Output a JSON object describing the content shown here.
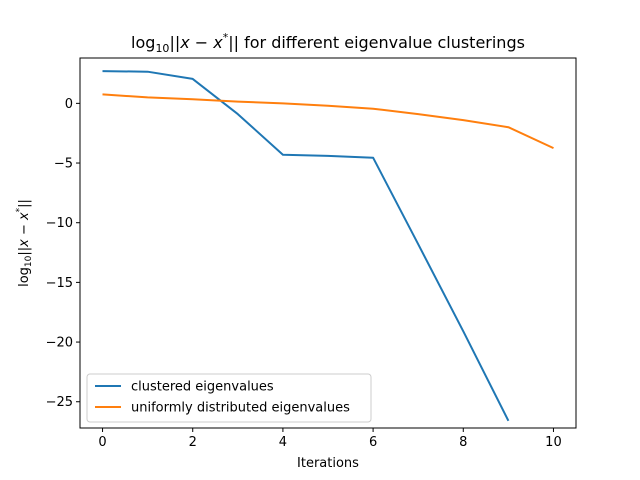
{
  "chart_data": {
    "type": "line",
    "title": {
      "prefix": "log",
      "sub": "10",
      "expr": "||x − x",
      "sup": "*",
      "suffix": "|| for different eigenvalue clusterings"
    },
    "xlabel": "Iterations",
    "ylabel": {
      "prefix": "log",
      "sub": "10",
      "expr": "||x − x",
      "sup": "*",
      "suffix": "||"
    },
    "xlim": [
      -0.5,
      10.5
    ],
    "ylim": [
      -27.2,
      3.8
    ],
    "xticks": [
      0,
      2,
      4,
      6,
      8,
      10
    ],
    "yticks": [
      0,
      -5,
      -10,
      -15,
      -20,
      -25
    ],
    "ytick_labels": [
      "0",
      "−5",
      "−10",
      "−15",
      "−20",
      "−25"
    ],
    "grid": false,
    "legend_position": "lower-left",
    "series": [
      {
        "name": "clustered eigenvalues",
        "color": "#1f77b4",
        "x": [
          0,
          1,
          2,
          3,
          4,
          5,
          6,
          7,
          8,
          9
        ],
        "y": [
          2.7,
          2.65,
          2.05,
          -0.9,
          -4.3,
          -4.4,
          -4.55,
          -11.8,
          -19.1,
          -26.6
        ]
      },
      {
        "name": "uniformly distributed eigenvalues",
        "color": "#ff7f0e",
        "x": [
          0,
          1,
          2,
          3,
          4,
          5,
          6,
          7,
          8,
          9,
          10
        ],
        "y": [
          0.75,
          0.5,
          0.35,
          0.15,
          0.0,
          -0.2,
          -0.45,
          -0.9,
          -1.4,
          -2.0,
          -3.75
        ]
      }
    ]
  }
}
